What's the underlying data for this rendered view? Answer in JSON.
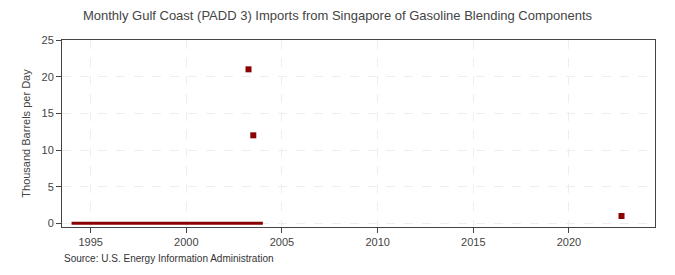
{
  "chart_data": {
    "type": "line",
    "title": "Monthly Gulf Coast (PADD 3) Imports from Singapore of Gasoline Blending Components",
    "ylabel": "Thousand Barrels per Day",
    "annotation": "Source: U.S. Energy Information Administration",
    "series": [
      {
        "type": "line",
        "color": "#8b0000",
        "x": [
          1994.0,
          2004.0
        ],
        "values": [
          0,
          0
        ]
      },
      {
        "type": "scatter",
        "marker": "square",
        "color": "#8b0000",
        "x": [
          2003.25,
          2003.5,
          2022.75
        ],
        "values": [
          21,
          12,
          1
        ]
      }
    ],
    "xlim": [
      1993.5,
      2024.5
    ],
    "ylim": [
      -0.5,
      25
    ],
    "xticks": [
      1995,
      2000,
      2005,
      2010,
      2015,
      2020
    ],
    "yticks": [
      0,
      5,
      10,
      15,
      20,
      25
    ],
    "grid": true
  }
}
